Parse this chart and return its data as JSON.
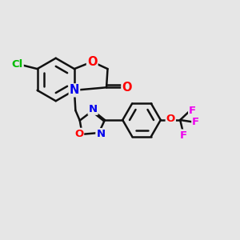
{
  "bg_color": "#e6e6e6",
  "bond_color": "#111111",
  "bond_width": 1.8,
  "dbo": 0.055,
  "atom_colors": {
    "N": "#0000ee",
    "O": "#ff0000",
    "Cl": "#00bb00",
    "F": "#ee00ee"
  },
  "font_size": 9.5,
  "fig_size": [
    3.0,
    3.0
  ],
  "dpi": 100
}
